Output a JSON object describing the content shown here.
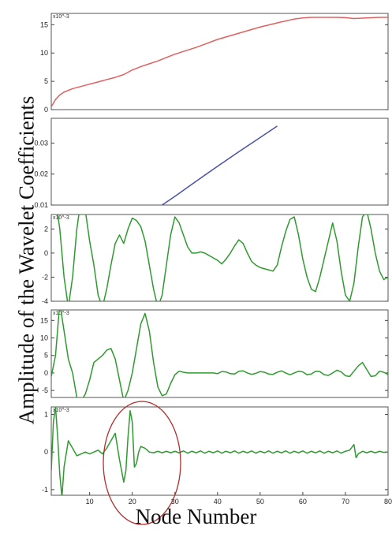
{
  "figure": {
    "ylabel": "Amplitude of the Wavelet Coefficients",
    "xlabel": "Node Number"
  },
  "chart_data": [
    {
      "type": "line",
      "multiplier": "x10^-3",
      "xlim": [
        1,
        80
      ],
      "ylim": [
        0,
        17
      ],
      "yticks": [
        0,
        5,
        10,
        15
      ],
      "xticks": [],
      "series": [
        {
          "color": "#e06060",
          "x": [
            1,
            2,
            3,
            4,
            6,
            8,
            10,
            12,
            14,
            16,
            18,
            20,
            22,
            24,
            26,
            28,
            30,
            35,
            40,
            45,
            50,
            55,
            58,
            60,
            62,
            65,
            68,
            70,
            72,
            75,
            78,
            80
          ],
          "y": [
            0.5,
            1.8,
            2.6,
            3.1,
            3.7,
            4.1,
            4.5,
            4.9,
            5.3,
            5.7,
            6.2,
            7.0,
            7.6,
            8.1,
            8.6,
            9.2,
            9.8,
            11.0,
            12.4,
            13.5,
            14.6,
            15.5,
            16.0,
            16.2,
            16.3,
            16.3,
            16.3,
            16.25,
            16.1,
            16.2,
            16.3,
            16.3
          ]
        }
      ]
    },
    {
      "type": "line",
      "multiplier": "",
      "xlim": [
        1,
        80
      ],
      "ylim": [
        0.01,
        0.038
      ],
      "yticks": [
        0.01,
        0.02,
        0.03
      ],
      "xticks": [],
      "series": [
        {
          "color": "#4a52a8",
          "x": [
            27,
            30,
            35,
            40,
            45,
            50,
            54
          ],
          "y": [
            0.01,
            0.0128,
            0.0177,
            0.0225,
            0.0272,
            0.0318,
            0.0355
          ]
        }
      ]
    },
    {
      "type": "line",
      "multiplier": "x10^-3",
      "xlim": [
        1,
        80
      ],
      "ylim": [
        -4,
        3.2
      ],
      "yticks": [
        -4,
        -2,
        0,
        2
      ],
      "xticks": [],
      "series": [
        {
          "color": "#2f9a2f",
          "x": [
            1,
            2,
            3,
            4,
            5,
            6,
            7,
            8,
            9,
            10,
            11,
            12,
            13,
            14,
            15,
            16,
            17,
            18,
            19,
            20,
            21,
            22,
            23,
            24,
            25,
            26,
            27,
            28,
            29,
            30,
            31,
            32,
            33,
            34,
            35,
            36,
            37,
            38,
            39,
            40,
            41,
            42,
            43,
            44,
            45,
            46,
            47,
            48,
            49,
            50,
            51,
            52,
            53,
            54,
            55,
            56,
            57,
            58,
            59,
            60,
            61,
            62,
            63,
            64,
            65,
            66,
            67,
            68,
            69,
            70,
            71,
            72,
            73,
            74,
            75,
            76,
            77,
            78,
            79,
            80
          ],
          "y": [
            3.5,
            4.5,
            2.0,
            -2.0,
            -4.5,
            -2.0,
            2.0,
            4.5,
            3.5,
            1.0,
            -1.0,
            -3.5,
            -4.5,
            -3.0,
            -1.0,
            0.8,
            1.5,
            0.8,
            2.0,
            2.9,
            2.7,
            2.2,
            1.0,
            -1.0,
            -3.0,
            -4.5,
            -3.5,
            -1.0,
            1.5,
            3.0,
            2.5,
            1.5,
            0.5,
            0.0,
            0.0,
            0.1,
            0.0,
            -0.2,
            -0.4,
            -0.6,
            -0.9,
            -0.5,
            0.0,
            0.6,
            1.1,
            0.8,
            0.0,
            -0.7,
            -1.0,
            -1.2,
            -1.3,
            -1.4,
            -1.5,
            -1.0,
            0.5,
            1.8,
            2.8,
            3.0,
            1.5,
            -0.5,
            -2.0,
            -3.0,
            -3.2,
            -2.0,
            -0.5,
            1.0,
            2.5,
            1.0,
            -1.5,
            -3.5,
            -4.0,
            -2.5,
            0.5,
            3.0,
            3.5,
            2.0,
            0.0,
            -1.5,
            -2.2,
            -2.0
          ]
        }
      ]
    },
    {
      "type": "line",
      "multiplier": "x10^-3",
      "xlim": [
        1,
        80
      ],
      "ylim": [
        -7,
        18
      ],
      "yticks": [
        -5,
        0,
        5,
        10,
        15
      ],
      "xticks": [],
      "series": [
        {
          "color": "#2f9a2f",
          "x": [
            1,
            2,
            3,
            4,
            5,
            6,
            7,
            8,
            9,
            10,
            11,
            12,
            13,
            14,
            15,
            16,
            17,
            18,
            19,
            20,
            21,
            22,
            23,
            24,
            25,
            26,
            27,
            28,
            29,
            30,
            31,
            32,
            33,
            34,
            35,
            36,
            37,
            38,
            39,
            40,
            41,
            42,
            43,
            44,
            45,
            46,
            47,
            48,
            49,
            50,
            51,
            52,
            53,
            54,
            55,
            56,
            57,
            58,
            59,
            60,
            61,
            62,
            63,
            64,
            65,
            66,
            67,
            68,
            69,
            70,
            71,
            72,
            73,
            74,
            75,
            76,
            77,
            78,
            79,
            80
          ],
          "y": [
            -1.0,
            5.0,
            20.0,
            12.0,
            4.0,
            0.0,
            -7.0,
            -8.0,
            -6.0,
            -2.0,
            3.0,
            4.0,
            5.0,
            6.5,
            7.0,
            4.0,
            -2.0,
            -8.0,
            -5.0,
            0.0,
            7.0,
            14.0,
            17.0,
            12.0,
            3.0,
            -4.0,
            -6.5,
            -6.0,
            -3.0,
            -0.5,
            0.5,
            0.2,
            0.0,
            0.0,
            0.0,
            0.0,
            0.0,
            0.0,
            0.0,
            -0.2,
            0.4,
            0.3,
            -0.2,
            -0.3,
            0.5,
            0.6,
            0.0,
            -0.4,
            -0.1,
            0.4,
            0.2,
            -0.3,
            -0.4,
            0.2,
            0.6,
            0.0,
            -0.5,
            0.0,
            0.5,
            0.3,
            -0.5,
            -0.3,
            0.5,
            0.4,
            -0.5,
            -0.7,
            0.0,
            0.8,
            0.3,
            -0.8,
            -1.0,
            0.5,
            2.0,
            3.0,
            1.0,
            -1.0,
            -0.8,
            0.5,
            0.2,
            -0.5
          ]
        }
      ]
    },
    {
      "type": "line",
      "multiplier": "x10^-3",
      "xlim": [
        1,
        80
      ],
      "ylim": [
        -1.15,
        1.2
      ],
      "yticks": [
        -1,
        0,
        1
      ],
      "xticks": [
        10,
        20,
        30,
        40,
        50,
        60,
        70,
        80
      ],
      "series": [
        {
          "color": "#2f9a2f",
          "x": [
            1,
            1.5,
            2,
            2.5,
            3,
            3.5,
            4,
            5,
            6,
            7,
            8,
            9,
            10,
            11,
            12,
            13,
            14,
            15,
            16,
            17,
            18,
            18.5,
            19,
            19.5,
            20,
            20.5,
            21,
            21.5,
            22,
            23,
            24,
            25,
            26,
            27,
            28,
            29,
            30,
            31,
            32,
            33,
            34,
            35,
            36,
            37,
            38,
            39,
            40,
            41,
            42,
            43,
            44,
            45,
            46,
            47,
            48,
            49,
            50,
            51,
            52,
            53,
            54,
            55,
            56,
            57,
            58,
            59,
            60,
            61,
            62,
            63,
            64,
            65,
            66,
            67,
            68,
            69,
            70,
            71,
            72,
            72.5,
            73,
            74,
            75,
            76,
            77,
            78,
            79,
            80
          ],
          "y": [
            -0.5,
            0.8,
            1.2,
            0.4,
            -0.6,
            -1.2,
            -0.4,
            0.3,
            0.1,
            -0.1,
            -0.05,
            0.0,
            -0.05,
            0.0,
            0.05,
            -0.05,
            0.1,
            0.3,
            0.5,
            -0.2,
            -0.8,
            -0.5,
            0.4,
            1.1,
            0.8,
            -0.4,
            -0.3,
            0.0,
            0.15,
            0.1,
            0.0,
            -0.02,
            0.02,
            -0.02,
            0.02,
            -0.02,
            0.02,
            -0.02,
            0.03,
            -0.03,
            0.02,
            -0.02,
            0.03,
            -0.03,
            0.02,
            -0.02,
            0.03,
            -0.03,
            0.02,
            -0.02,
            0.03,
            -0.03,
            0.02,
            -0.02,
            0.03,
            -0.03,
            0.02,
            -0.02,
            0.03,
            -0.03,
            0.02,
            -0.02,
            0.03,
            -0.03,
            0.02,
            -0.02,
            0.03,
            -0.03,
            0.02,
            -0.02,
            0.03,
            -0.03,
            0.02,
            -0.02,
            0.03,
            -0.03,
            0.02,
            0.05,
            0.2,
            -0.15,
            -0.05,
            0.02,
            -0.02,
            0.02,
            -0.02,
            0.02,
            -0.01,
            0.0
          ]
        }
      ]
    }
  ]
}
